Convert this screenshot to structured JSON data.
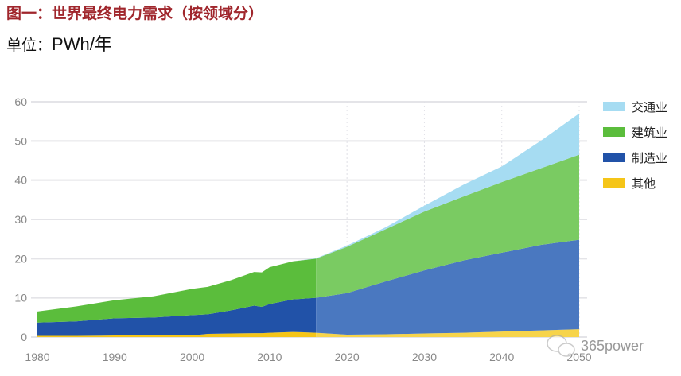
{
  "title": "图一：世界最终电力需求（按领域分）",
  "unit_label": "单位：",
  "unit_value": "PWh/年",
  "watermark": "365power",
  "chart_data": {
    "type": "area",
    "stacked": true,
    "title": "图一：世界最终电力需求（按领域分）",
    "ylabel": "PWh/年",
    "xlim": [
      1980,
      2050
    ],
    "ylim": [
      0,
      60
    ],
    "x_ticks": [
      "1980",
      "1990",
      "2000",
      "2010",
      "2020",
      "2030",
      "2040",
      "2050"
    ],
    "y_ticks": [
      "0",
      "10",
      "20",
      "30",
      "40",
      "50",
      "60"
    ],
    "grid": "horizontal",
    "legend_position": "right",
    "historical_until": 2016,
    "x": [
      1980,
      1985,
      1990,
      1995,
      2000,
      2002,
      2005,
      2008,
      2009,
      2010,
      2013,
      2016,
      2020,
      2025,
      2030,
      2035,
      2040,
      2045,
      2050
    ],
    "series": [
      {
        "name": "其他",
        "color": "#f5c518",
        "color_projected": "#f7d44a",
        "values": [
          0.3,
          0.3,
          0.4,
          0.4,
          0.4,
          0.8,
          0.9,
          1.0,
          1.0,
          1.1,
          1.3,
          1.1,
          0.6,
          0.7,
          0.9,
          1.1,
          1.4,
          1.7,
          2.0
        ]
      },
      {
        "name": "制造业",
        "color": "#2152a8",
        "color_projected": "#4a78c0",
        "values": [
          3.4,
          3.7,
          4.4,
          4.6,
          5.2,
          5.0,
          5.9,
          7.0,
          6.7,
          7.3,
          8.3,
          8.9,
          10.6,
          13.5,
          16.1,
          18.4,
          20.1,
          21.8,
          22.8
        ]
      },
      {
        "name": "建筑业",
        "color": "#5bbd3c",
        "color_projected": "#7acb62",
        "values": [
          2.8,
          3.8,
          4.6,
          5.4,
          6.7,
          7.0,
          7.7,
          8.6,
          8.8,
          9.4,
          9.7,
          10.0,
          11.8,
          13.3,
          15.0,
          16.3,
          18.0,
          19.5,
          21.7
        ]
      },
      {
        "name": "交通业",
        "color": "#a6dcf2",
        "color_projected": "#a6dcf2",
        "values": [
          0,
          0,
          0,
          0,
          0,
          0,
          0,
          0,
          0,
          0,
          0,
          0.1,
          0.3,
          0.5,
          1.5,
          3.0,
          4.0,
          7.0,
          10.5
        ]
      }
    ],
    "legend_order": [
      "交通业",
      "建筑业",
      "制造业",
      "其他"
    ]
  }
}
